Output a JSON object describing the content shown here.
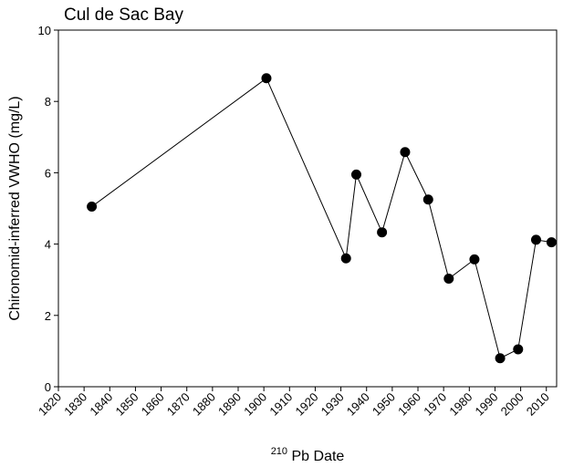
{
  "chart_data": {
    "type": "line",
    "title": "Cul de Sac Bay",
    "xlabel_superscript": "210",
    "xlabel_main": "Pb Date",
    "ylabel": "Chironomid-inferred VWHO (mg/L)",
    "xlim": [
      1820,
      2014
    ],
    "ylim": [
      0,
      10
    ],
    "xticks": [
      "1820",
      "1830",
      "1840",
      "1850",
      "1860",
      "1870",
      "1880",
      "1890",
      "1900",
      "1910",
      "1920",
      "1930",
      "1940",
      "1950",
      "1960",
      "1970",
      "1980",
      "1990",
      "2000",
      "2010"
    ],
    "yticks": [
      "0",
      "2",
      "4",
      "6",
      "8",
      "10"
    ],
    "grid": false,
    "series": [
      {
        "x": [
          1833,
          1901,
          1932,
          1936,
          1946,
          1955,
          1964,
          1972,
          1982,
          1992,
          1999,
          2006,
          2012
        ],
        "y": [
          5.05,
          8.65,
          3.6,
          5.95,
          4.33,
          6.58,
          5.25,
          3.03,
          3.57,
          0.8,
          1.05,
          4.12,
          4.05
        ]
      }
    ]
  }
}
